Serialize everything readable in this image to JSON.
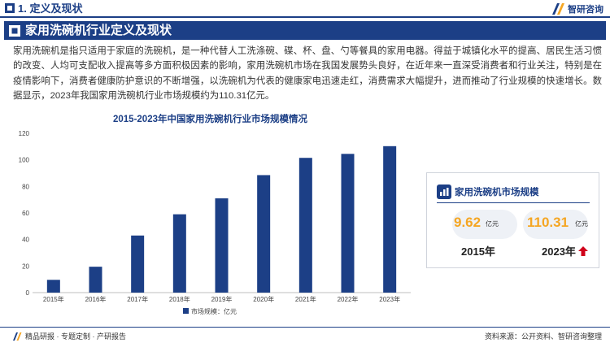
{
  "header": {
    "section_title": "1. 定义及现状",
    "logo_text": "智研咨询"
  },
  "banner": {
    "title": "家用洗碗机行业定义及现状"
  },
  "body_text": "家用洗碗机是指只适用于家庭的洗碗机，是一种代替人工洗涤碗、碟、杯、盘、勺等餐具的家用电器。得益于城镇化水平的提高、居民生活习惯的改变、人均可支配收入提高等多方面积极因素的影响，家用洗碗机市场在我国发展势头良好，在近年来一直深受消费者和行业关注，特别是在疫情影响下，消费者健康防护意识的不断增强，以洗碗机为代表的健康家电迅速走红，消费需求大幅提升，进而推动了行业规模的快速增长。数据显示，2023年我国家用洗碗机行业市场规模约为110.31亿元。",
  "chart_data": {
    "type": "bar",
    "title": "2015-2023年中国家用洗碗机行业市场规模情况",
    "categories": [
      "2015年",
      "2016年",
      "2017年",
      "2018年",
      "2019年",
      "2020年",
      "2021年",
      "2022年",
      "2023年"
    ],
    "series": [
      {
        "name": "市场规模：亿元",
        "values": [
          9.62,
          19.5,
          43.0,
          59.0,
          71.0,
          88.5,
          101.5,
          104.5,
          110.31
        ]
      }
    ],
    "ylim": [
      0,
      120
    ],
    "yticks": [
      0,
      20,
      40,
      60,
      80,
      100,
      120
    ],
    "grid": false,
    "legend_position": "bottom",
    "bar_color": "#1c3f86"
  },
  "stat_card": {
    "title": "家用洗碗机市场规模",
    "left_value": "9.62",
    "left_unit": "亿元",
    "left_year": "2015年",
    "right_value": "110.31",
    "right_unit": "亿元",
    "right_year": "2023年",
    "arrow_color": "#d0021b",
    "value_color": "#f5a623"
  },
  "footer": {
    "left_text": "精品研报 · 专题定制 · 产研报告",
    "right_text": "资料来源：公开资料、智研咨询整理"
  },
  "colors": {
    "brand": "#1c3f86",
    "accent": "#f5a623"
  }
}
